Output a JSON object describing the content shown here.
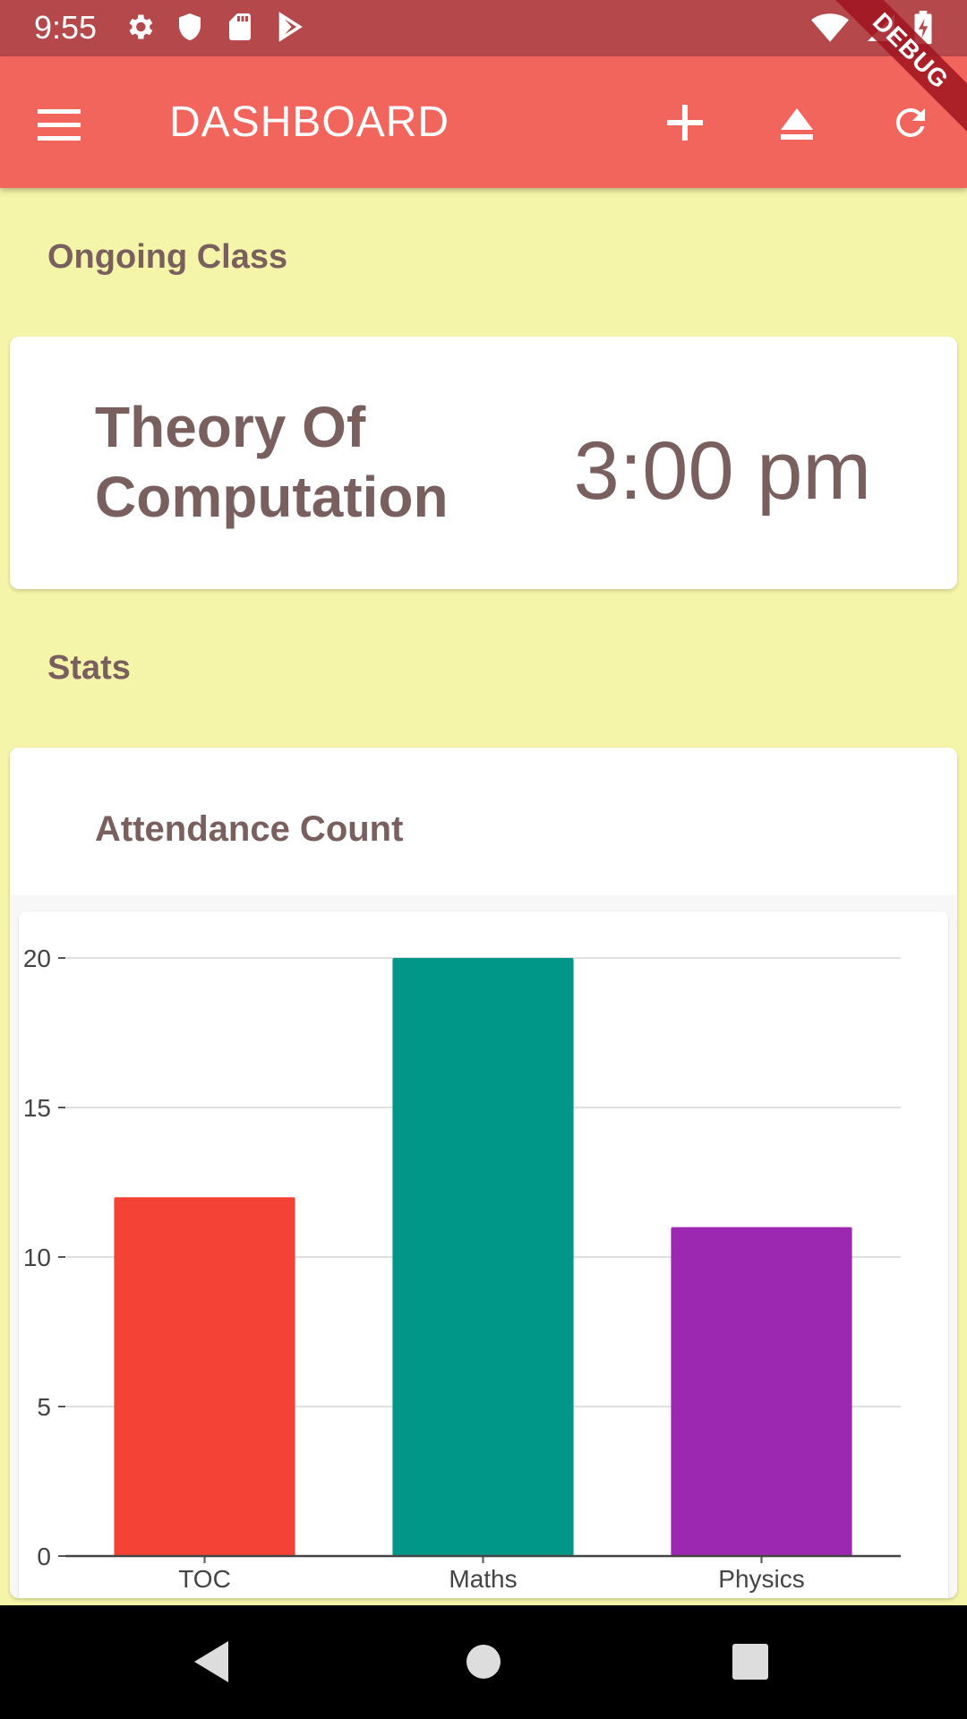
{
  "status_bar": {
    "time": "9:55",
    "left_icons": [
      "settings-icon",
      "shield-icon",
      "sd-card-icon",
      "play-store-icon"
    ],
    "right_icons": [
      "wifi-icon",
      "signal-icon",
      "battery-icon"
    ]
  },
  "debug_banner": "DEBUG",
  "app_bar": {
    "title": "DASHBOARD",
    "actions": [
      "add-icon",
      "eject-icon",
      "refresh-icon"
    ]
  },
  "ongoing": {
    "section_title": "Ongoing Class",
    "class_name": "Theory Of Computation",
    "time": "3:00 pm"
  },
  "stats": {
    "section_title": "Stats",
    "card_title": "Attendance Count"
  },
  "chart_data": {
    "type": "bar",
    "categories": [
      "TOC",
      "Maths",
      "Physics"
    ],
    "values": [
      12,
      20,
      11
    ],
    "colors": [
      "#f44336",
      "#009688",
      "#9c27b0"
    ],
    "ylim": [
      0,
      20
    ],
    "yticks": [
      0,
      5,
      10,
      15,
      20
    ],
    "grid": true,
    "title": "",
    "xlabel": "",
    "ylabel": ""
  },
  "nav_bar": [
    "back-icon",
    "home-icon",
    "recents-icon"
  ]
}
